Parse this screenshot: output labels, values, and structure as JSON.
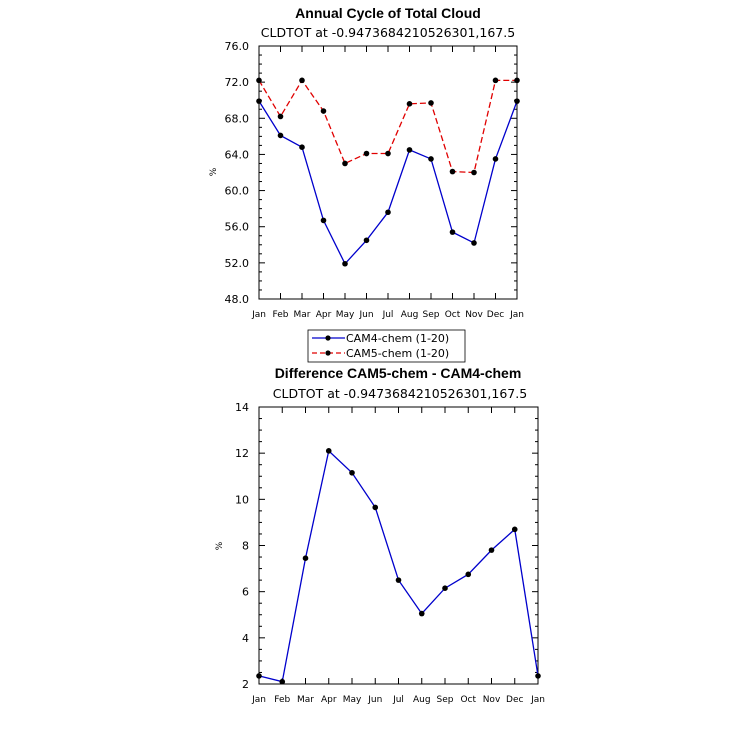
{
  "chart_data": [
    {
      "type": "line",
      "title": "Annual Cycle of Total Cloud",
      "subtitle": "CLDTOT at -0.9473684210526301,167.5",
      "xlabel": "",
      "ylabel": "%",
      "categories": [
        "Jan",
        "Feb",
        "Mar",
        "Apr",
        "May",
        "Jun",
        "Jul",
        "Aug",
        "Sep",
        "Oct",
        "Nov",
        "Dec",
        "Jan"
      ],
      "ylim": [
        48,
        76
      ],
      "yticks": [
        "48.0",
        "52.0",
        "56.0",
        "60.0",
        "64.0",
        "68.0",
        "72.0",
        "76.0"
      ],
      "series": [
        {
          "name": "CAM4-chem (1-20)",
          "color": "#0000cc",
          "dash": "solid",
          "values": [
            69.9,
            66.1,
            64.8,
            56.7,
            51.9,
            54.5,
            57.6,
            64.5,
            63.5,
            55.4,
            54.2,
            63.5,
            69.9
          ]
        },
        {
          "name": "CAM5-chem (1-20)",
          "color": "#e00000",
          "dash": "dashed",
          "values": [
            72.2,
            68.2,
            72.2,
            68.8,
            63.0,
            64.1,
            64.1,
            69.6,
            69.7,
            62.1,
            62.0,
            72.2,
            72.2
          ]
        }
      ],
      "legend": "bottom"
    },
    {
      "type": "line",
      "title": "Difference CAM5-chem - CAM4-chem",
      "subtitle": "CLDTOT at -0.9473684210526301,167.5",
      "xlabel": "",
      "ylabel": "%",
      "categories": [
        "Jan",
        "Feb",
        "Mar",
        "Apr",
        "May",
        "Jun",
        "Jul",
        "Aug",
        "Sep",
        "Oct",
        "Nov",
        "Dec",
        "Jan"
      ],
      "ylim": [
        2,
        14
      ],
      "yticks": [
        "2",
        "4",
        "6",
        "8",
        "10",
        "12",
        "14"
      ],
      "series": [
        {
          "color": "#0000cc",
          "dash": "solid",
          "values": [
            2.35,
            2.1,
            7.45,
            12.1,
            11.15,
            9.65,
            6.5,
            5.05,
            6.15,
            6.75,
            7.8,
            8.7,
            2.35
          ]
        }
      ]
    }
  ]
}
